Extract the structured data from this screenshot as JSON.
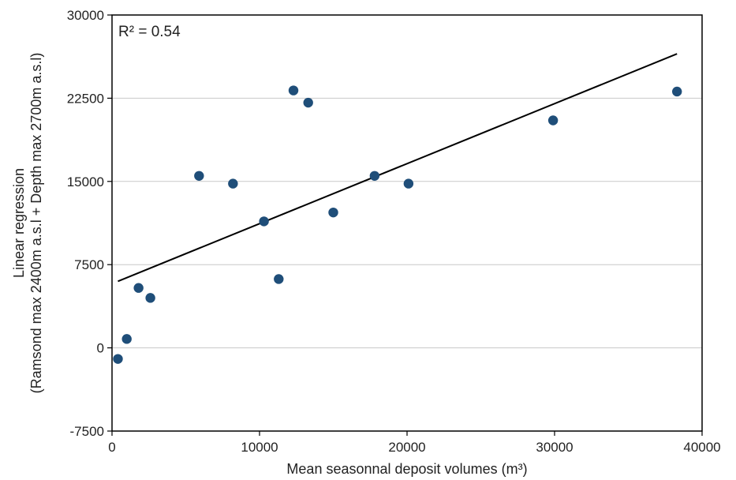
{
  "chart_data": {
    "type": "scatter",
    "xlabel": "Mean seasonnal deposit volumes (m³)",
    "ylabel_lines": [
      "Linear regression",
      "(Ramsond max 2400m a.s.l + Depth max 2700m a.s.l)"
    ],
    "annotation": "R² = 0.54",
    "xlim": [
      0,
      40000
    ],
    "ylim": [
      -7500,
      30000
    ],
    "x_ticks": [
      0,
      10000,
      20000,
      30000,
      40000
    ],
    "y_ticks": [
      -7500,
      0,
      7500,
      15000,
      22500,
      30000
    ],
    "x_tick_labels": [
      "0",
      "10000",
      "20000",
      "30000",
      "40000"
    ],
    "y_tick_labels": [
      "-7500",
      "0",
      "7500",
      "15000",
      "22500",
      "30000"
    ],
    "grid": "horizontal",
    "series": [
      {
        "points": [
          {
            "x": 400,
            "y": -1000
          },
          {
            "x": 1000,
            "y": 800
          },
          {
            "x": 1800,
            "y": 5400
          },
          {
            "x": 2600,
            "y": 4500
          },
          {
            "x": 5900,
            "y": 15500
          },
          {
            "x": 8200,
            "y": 14800
          },
          {
            "x": 10300,
            "y": 11400
          },
          {
            "x": 11300,
            "y": 6200
          },
          {
            "x": 12300,
            "y": 23200
          },
          {
            "x": 13300,
            "y": 22100
          },
          {
            "x": 15000,
            "y": 12200
          },
          {
            "x": 17800,
            "y": 15500
          },
          {
            "x": 20100,
            "y": 14800
          },
          {
            "x": 29900,
            "y": 20500
          },
          {
            "x": 38300,
            "y": 23100
          }
        ],
        "color": "#1f4e79"
      }
    ],
    "trendline": {
      "x": [
        400,
        38300
      ],
      "y": [
        6000,
        26500
      ],
      "color": "#000000"
    }
  }
}
